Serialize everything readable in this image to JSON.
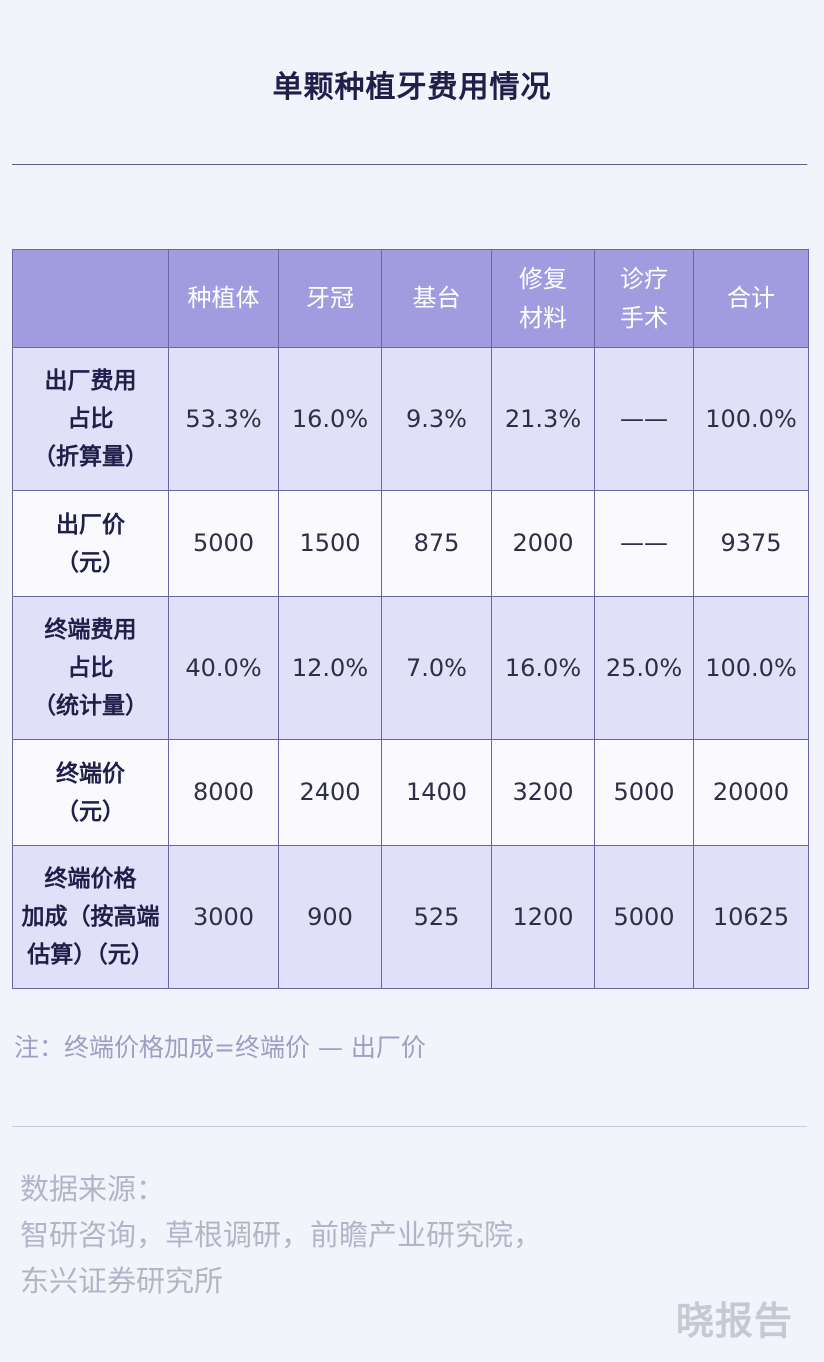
{
  "title": "单颗种植牙费用情况",
  "table": {
    "header": [
      "",
      "种植体",
      "牙冠",
      "基台",
      [
        "修复",
        "材料"
      ],
      [
        "诊疗",
        "手术"
      ],
      "合计"
    ],
    "rows": [
      {
        "label": [
          "出厂费用",
          "占比",
          "（折算量）"
        ],
        "cells": [
          "53.3%",
          "16.0%",
          "9.3%",
          "21.3%",
          "——",
          "100.0%"
        ]
      },
      {
        "label": [
          "出厂价",
          "（元）"
        ],
        "cells": [
          "5000",
          "1500",
          "875",
          "2000",
          "——",
          "9375"
        ]
      },
      {
        "label": [
          "终端费用",
          "占比",
          "（统计量）"
        ],
        "cells": [
          "40.0%",
          "12.0%",
          "7.0%",
          "16.0%",
          "25.0%",
          "100.0%"
        ]
      },
      {
        "label": [
          "终端价",
          "（元）"
        ],
        "cells": [
          "8000",
          "2400",
          "1400",
          "3200",
          "5000",
          "20000"
        ]
      },
      {
        "label": [
          "终端价格",
          "加成（按高端",
          "估算）（元）"
        ],
        "cells": [
          "3000",
          "900",
          "525",
          "1200",
          "5000",
          "10625"
        ]
      }
    ]
  },
  "note": "注：终端价格加成=终端价 — 出厂价",
  "source": {
    "label": "数据来源：",
    "line1": "智研咨询，草根调研，前瞻产业研究院，",
    "line2": "东兴证券研究所"
  },
  "logo_text": "晓报告",
  "colors": {
    "header_bg": "#a19ce0",
    "shade_row": "#e1e0f8",
    "border": "#6a66a8"
  }
}
